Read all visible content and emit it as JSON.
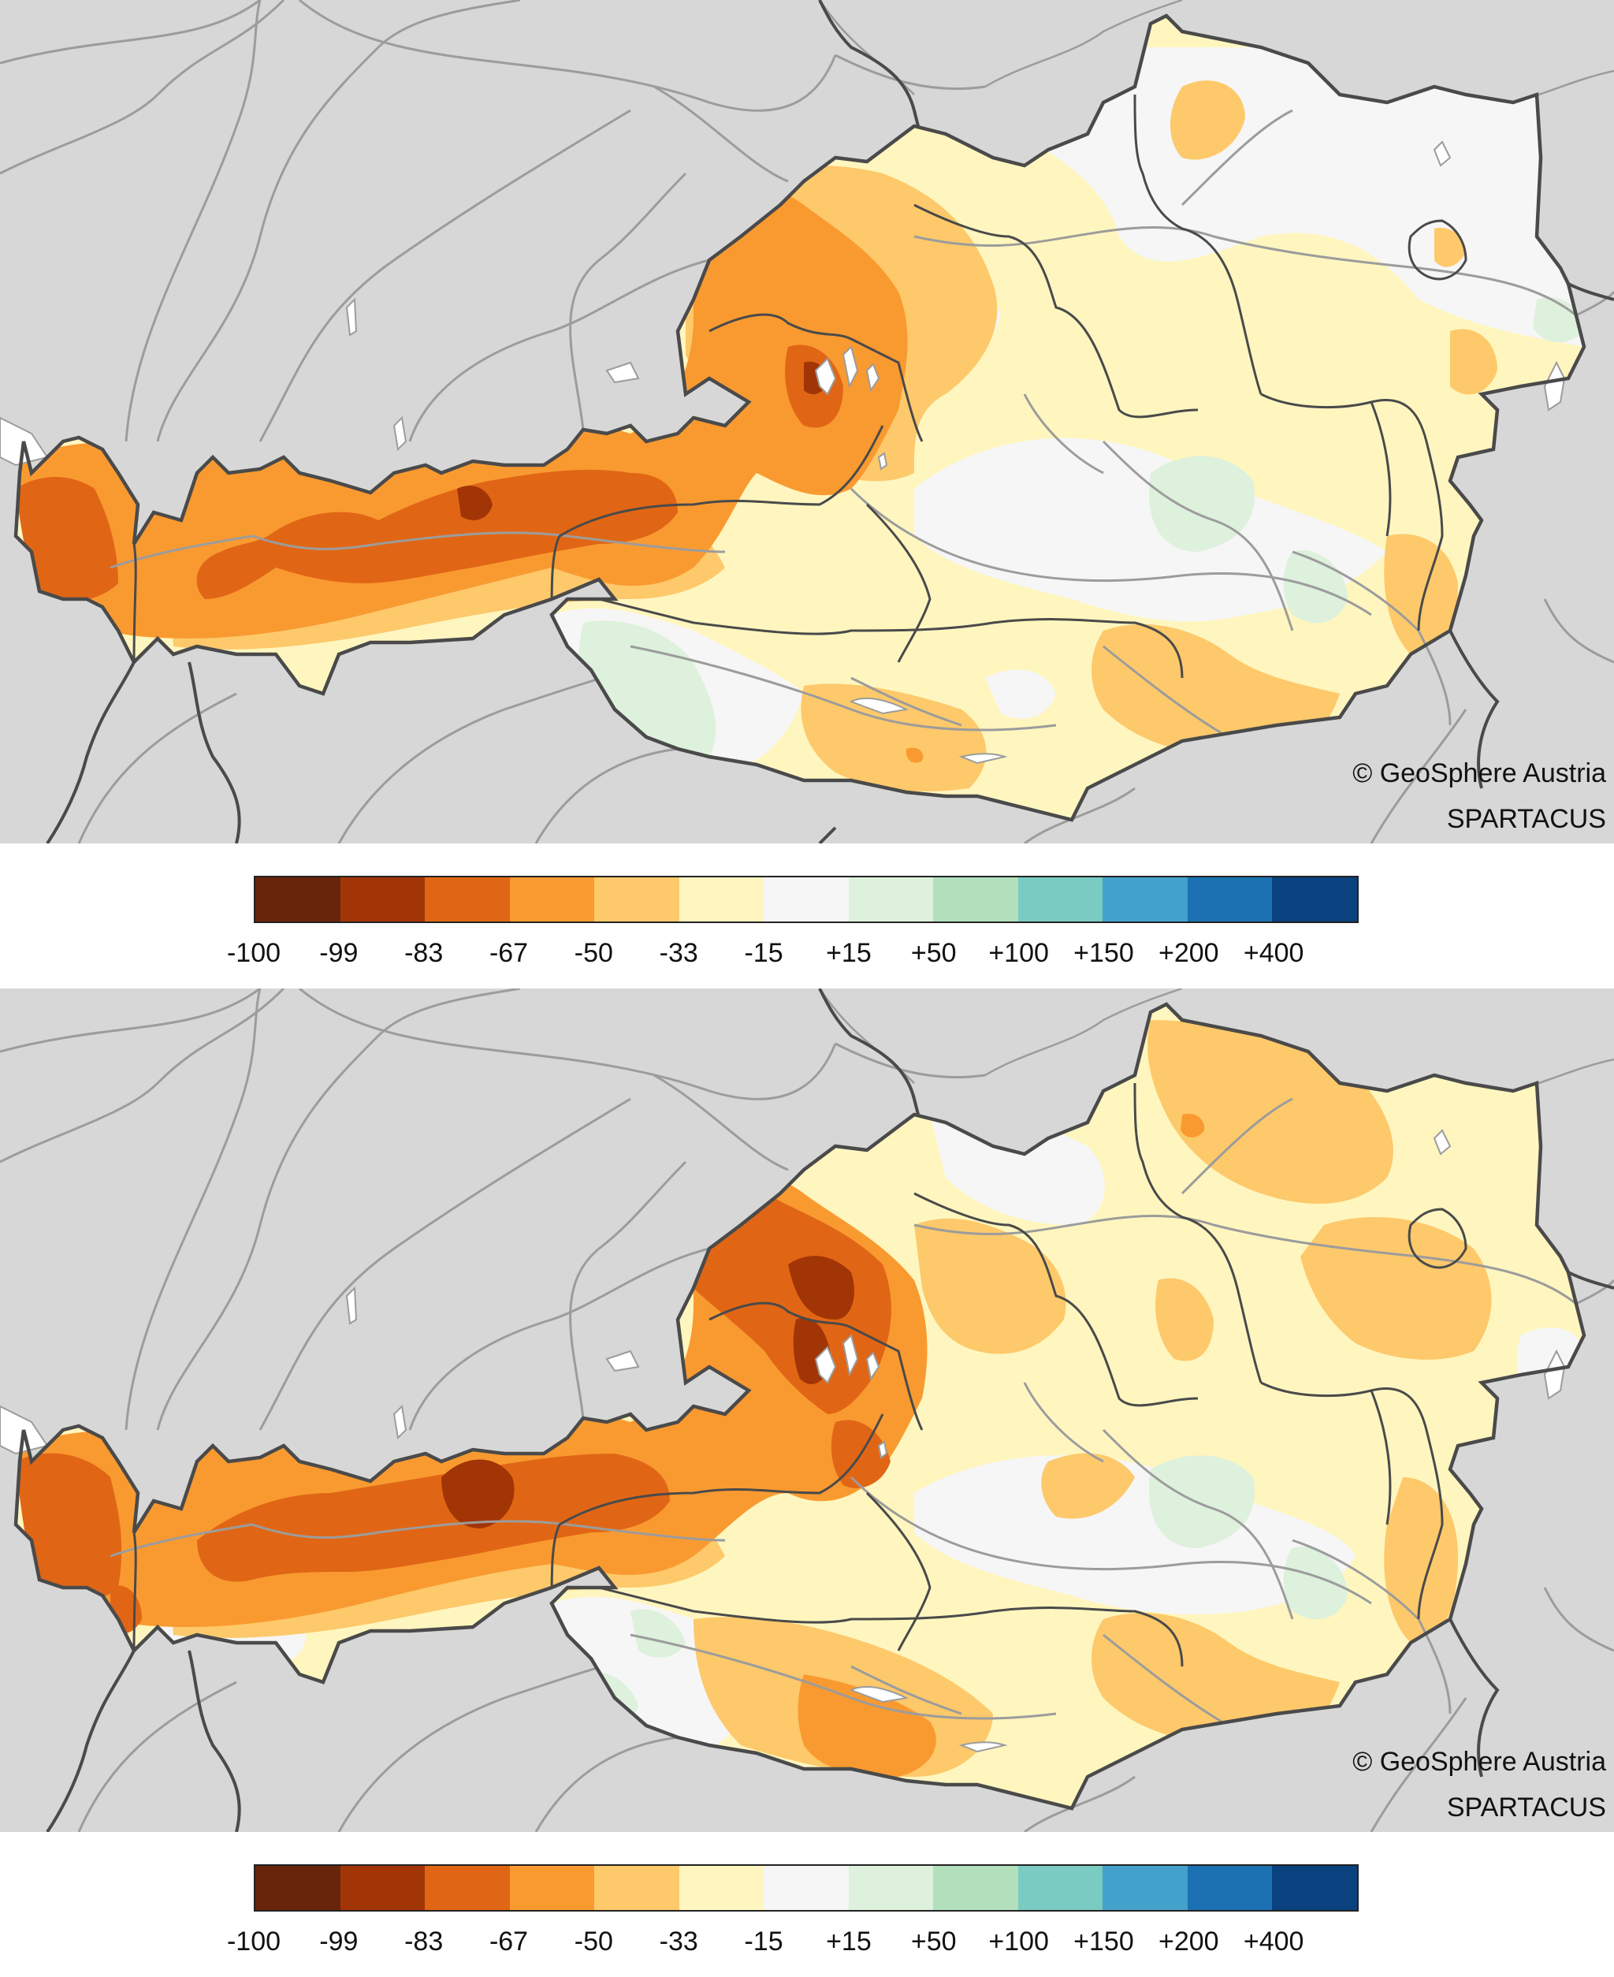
{
  "maps": [
    {
      "id": "top",
      "credit_copyright": "© GeoSphere Austria",
      "credit_source": "SPARTACUS"
    },
    {
      "id": "bottom",
      "credit_copyright": "© GeoSphere Austria",
      "credit_source": "SPARTACUS"
    }
  ],
  "legend": {
    "colors": [
      "#68250b",
      "#a23506",
      "#e06615",
      "#f99a30",
      "#fdc96b",
      "#fff6bf",
      "#f6f6f6",
      "#ddf1dc",
      "#b2e0bd",
      "#7acbc2",
      "#43a2cb",
      "#1b71b2",
      "#09427f"
    ],
    "ticks": [
      "-100",
      "-99",
      "-83",
      "-67",
      "-50",
      "-33",
      "-15",
      "+15",
      "+50",
      "+100",
      "+150",
      "+200",
      "+400"
    ]
  },
  "colors": {
    "outside_land": "#d7d7d7",
    "rivers": "#9c9c9c",
    "borders": "#4a4a4a",
    "lakes": "#ffffff"
  }
}
